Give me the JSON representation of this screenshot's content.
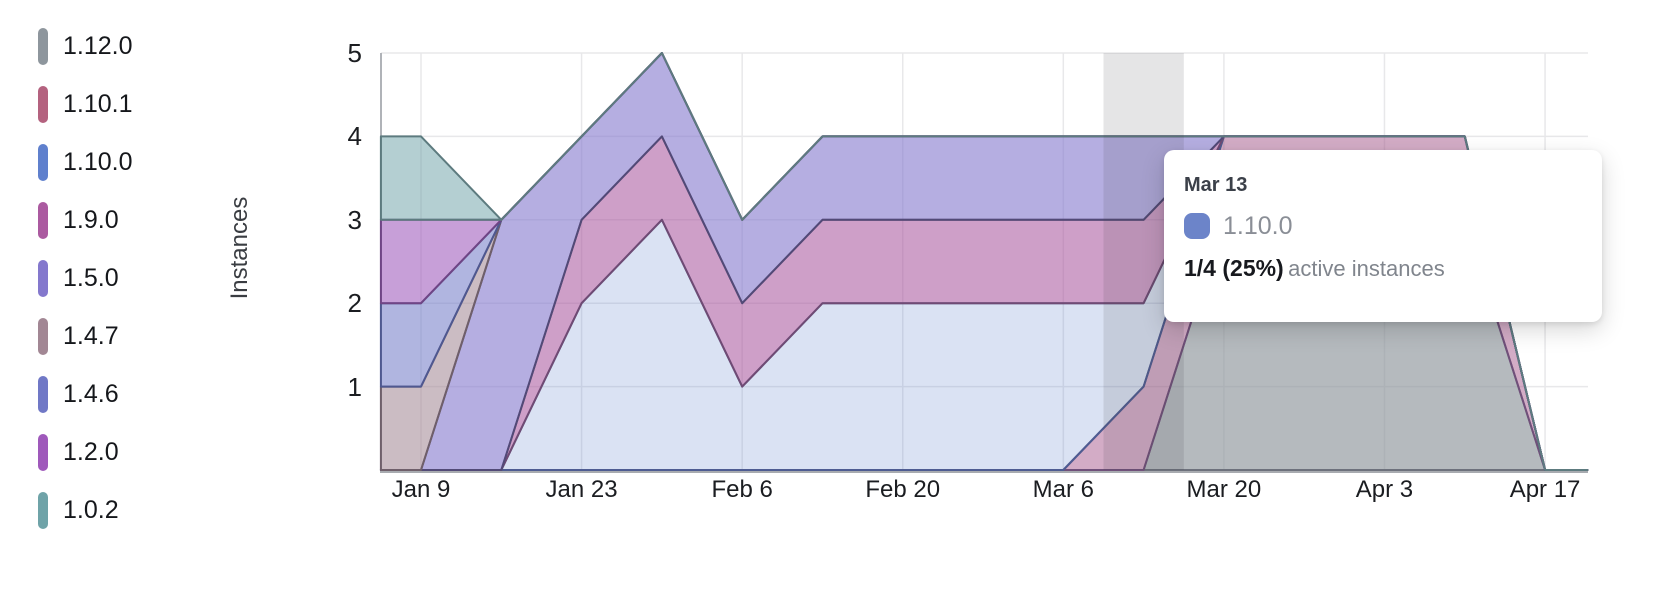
{
  "tooltip": {
    "date": "Mar 13",
    "series": "1.10.0",
    "swatch_color": "#6c84c9",
    "value": "1/4 (25%)",
    "suffix": "active instances"
  },
  "chart_data": {
    "type": "area",
    "stacked": true,
    "title": "",
    "ylabel": "Instances",
    "xlabel": "",
    "ylim": [
      0,
      5
    ],
    "grid": true,
    "legend_position": "left",
    "x_unit": "days-since-Jan-1",
    "x": [
      5.5,
      9,
      16,
      23,
      30,
      37,
      44,
      51,
      58,
      65,
      72,
      79,
      86,
      93,
      100,
      107,
      110.7
    ],
    "x_point_labels": [
      "Jan 5",
      "Jan 9",
      "Jan 16",
      "Jan 23",
      "Jan 30",
      "Feb 6",
      "Feb 13",
      "Feb 20",
      "Feb 27",
      "Mar 6",
      "Mar 13",
      "Mar 20",
      "Mar 27",
      "Apr 3",
      "Apr 10",
      "Apr 17",
      "Apr 20"
    ],
    "x_ticks": [
      {
        "label": "Jan 9",
        "day": 9
      },
      {
        "label": "Jan 23",
        "day": 23
      },
      {
        "label": "Feb 6",
        "day": 37
      },
      {
        "label": "Feb 20",
        "day": 51
      },
      {
        "label": "Mar 6",
        "day": 65
      },
      {
        "label": "Mar 20",
        "day": 79
      },
      {
        "label": "Apr 3",
        "day": 93
      },
      {
        "label": "Apr 17",
        "day": 107
      }
    ],
    "y_ticks": [
      1,
      2,
      3,
      4,
      5
    ],
    "series_stack_order": "first item is bottom of stack",
    "series": [
      {
        "name": "1.12.0",
        "color": "#8e969d",
        "fill": "rgba(142,150,157,0.66)",
        "stroke": "#6d717c",
        "values": [
          0,
          0,
          0,
          0,
          0,
          0,
          0,
          0,
          0,
          0,
          0,
          3,
          3,
          3,
          3,
          0,
          0
        ]
      },
      {
        "name": "1.10.1",
        "color": "#b4627f",
        "fill": "rgba(170,95,145,0.52)",
        "stroke": "#70507a",
        "values": [
          0,
          0,
          0,
          0,
          0,
          0,
          0,
          0,
          0,
          0,
          1,
          1,
          1,
          1,
          1,
          0,
          0
        ]
      },
      {
        "name": "1.10.0",
        "color": "#5f80cd",
        "fill": "rgba(95,128,205,0.23)",
        "stroke": "#4e5c92",
        "values": [
          0,
          0,
          0,
          2,
          3,
          1,
          2,
          2,
          2,
          2,
          1,
          0,
          0,
          0,
          0,
          0,
          0
        ]
      },
      {
        "name": "1.9.0",
        "color": "#ab5aa0",
        "fill": "rgba(171,90,160,0.58)",
        "stroke": "#6f4b74",
        "values": [
          0,
          0,
          0,
          1,
          1,
          1,
          1,
          1,
          1,
          1,
          1,
          0,
          0,
          0,
          0,
          0,
          0
        ]
      },
      {
        "name": "1.5.0",
        "color": "#8478cd",
        "fill": "rgba(132,120,205,0.60)",
        "stroke": "#524a77",
        "values": [
          0,
          0,
          3,
          1,
          1,
          1,
          1,
          1,
          1,
          1,
          1,
          0,
          0,
          0,
          0,
          0,
          0
        ]
      },
      {
        "name": "1.4.7",
        "color": "#a28794",
        "fill": "rgba(162,135,148,0.56)",
        "stroke": "#6f5f6a",
        "values": [
          1,
          1,
          0,
          0,
          0,
          0,
          0,
          0,
          0,
          0,
          0,
          0,
          0,
          0,
          0,
          0,
          0
        ]
      },
      {
        "name": "1.4.6",
        "color": "#7078c6",
        "fill": "rgba(112,120,198,0.55)",
        "stroke": "#4f5890",
        "values": [
          1,
          1,
          0,
          0,
          0,
          0,
          0,
          0,
          0,
          0,
          0,
          0,
          0,
          0,
          0,
          0,
          0
        ]
      },
      {
        "name": "1.2.0",
        "color": "#9f59bb",
        "fill": "rgba(159,89,187,0.58)",
        "stroke": "#6f4585",
        "values": [
          1,
          1,
          0,
          0,
          0,
          0,
          0,
          0,
          0,
          0,
          0,
          0,
          0,
          0,
          0,
          0,
          0
        ]
      },
      {
        "name": "1.0.2",
        "color": "#6fa3a8",
        "fill": "rgba(111,163,168,0.52)",
        "stroke": "#5d7b7f",
        "values": [
          1,
          1,
          0,
          0,
          0,
          0,
          0,
          0,
          0,
          0,
          0,
          0,
          0,
          0,
          0,
          0,
          0
        ]
      }
    ],
    "legend_items_top_to_bottom": [
      "1.12.0",
      "1.10.1",
      "1.10.0",
      "1.9.0",
      "1.5.0",
      "1.4.7",
      "1.4.6",
      "1.2.0",
      "1.0.2"
    ],
    "highlight": {
      "day": 72,
      "label": "Mar 13",
      "band_halfwidth_days": 3.5
    },
    "hovered_point": {
      "date": "Mar 13",
      "series": "1.10.0",
      "value": 1,
      "total": 4,
      "percent": 25
    }
  }
}
